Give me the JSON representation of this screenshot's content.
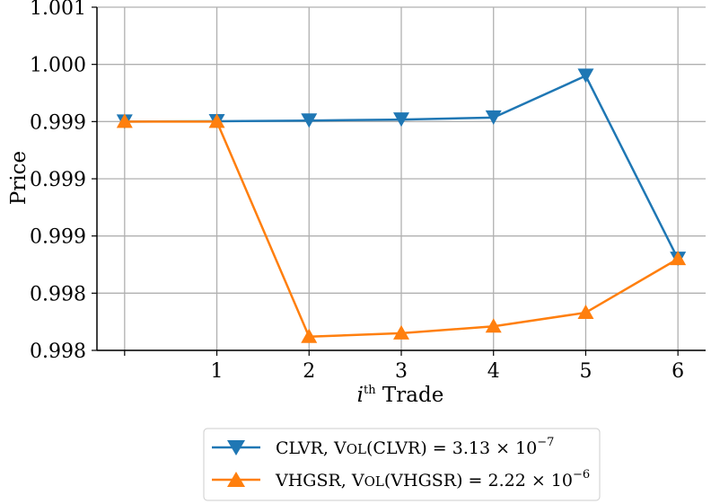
{
  "chart_data": {
    "type": "line",
    "x": [
      0,
      1,
      2,
      3,
      4,
      5,
      6
    ],
    "x_tick_labels": [
      "",
      "1",
      "2",
      "3",
      "4",
      "5",
      "6"
    ],
    "y_tick_values": [
      0.9977,
      0.9982,
      0.9987,
      0.9992,
      0.9997,
      1.0002,
      1.0007
    ],
    "y_tick_labels": [
      "0.998",
      "0.998",
      "0.999",
      "0.999",
      "0.999",
      "1.000",
      "1.001"
    ],
    "ylim": [
      0.9977,
      1.0007
    ],
    "xlim": [
      -0.3,
      6.3
    ],
    "xlabel": {
      "base": "i",
      "sup": "th",
      "rest": " Trade"
    },
    "ylabel": "Price",
    "grid": true,
    "legend_position": "bottom-center",
    "series": [
      {
        "name": "CLVR, Vol(CLVR) = 3.13 × 10^−7",
        "legend": {
          "prefix": "CLVR, ",
          "sc_first": "V",
          "sc_rest": "OL",
          "paren": "(CLVR) = 3.13 × 10",
          "exp": "−7"
        },
        "color": "#1f77b4",
        "marker": "triangle-down",
        "values": [
          0.9997,
          0.99970294,
          0.99970882,
          0.99971764,
          0.99973528,
          1.0001,
          0.9985
        ]
      },
      {
        "name": "VHGSR, Vol(VHGSR) = 2.22 × 10^−6",
        "legend": {
          "prefix": "VHGSR, ",
          "sc_first": "V",
          "sc_rest": "OL",
          "paren": "(VHGSR) = 2.22 × 10",
          "exp": "−6"
        },
        "color": "#ff7f0e",
        "marker": "triangle-up",
        "values": [
          0.9997,
          0.9997,
          0.99782,
          0.99785,
          0.99791,
          0.99803,
          0.9985
        ]
      }
    ]
  }
}
